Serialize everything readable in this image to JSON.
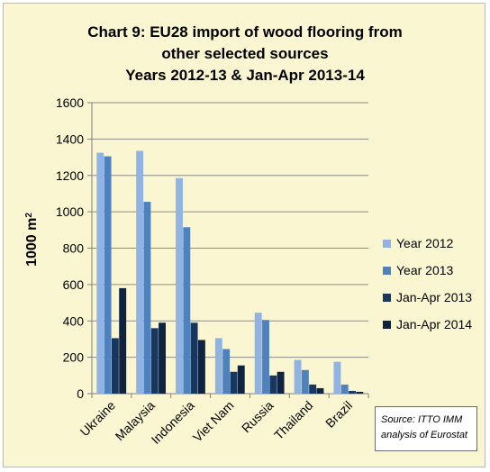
{
  "chart_data": {
    "type": "bar",
    "title": [
      "Chart 9: EU28 import of wood flooring from",
      "other selected sources",
      "Years 2012-13 & Jan-Apr 2013-14"
    ],
    "ylabel": "1000 m",
    "ylabel_superscript": "2",
    "xlabel": "",
    "ylim": [
      0,
      1600
    ],
    "yticks": [
      0,
      200,
      400,
      600,
      800,
      1000,
      1200,
      1400,
      1600
    ],
    "grid": "horizontal",
    "legend_position": "right",
    "categories": [
      "Ukraine",
      "Malaysia",
      "Indonesia",
      "Viet Nam",
      "Russia",
      "Thailand",
      "Brazil"
    ],
    "series": [
      {
        "name": "Year 2012",
        "color": "#8fb4e3",
        "values": [
          1325,
          1335,
          1185,
          305,
          445,
          185,
          175
        ]
      },
      {
        "name": "Year 2013",
        "color": "#4f81bd",
        "values": [
          1305,
          1055,
          915,
          245,
          405,
          130,
          50
        ]
      },
      {
        "name": "Jan-Apr 2013",
        "color": "#17375e",
        "values": [
          305,
          360,
          390,
          120,
          100,
          50,
          15
        ]
      },
      {
        "name": "Jan-Apr 2014",
        "color": "#0f2340",
        "values": [
          580,
          390,
          295,
          155,
          120,
          30,
          10
        ]
      }
    ],
    "source_note": [
      "Source: ITTO IMM",
      "analysis of Eurostat"
    ]
  }
}
